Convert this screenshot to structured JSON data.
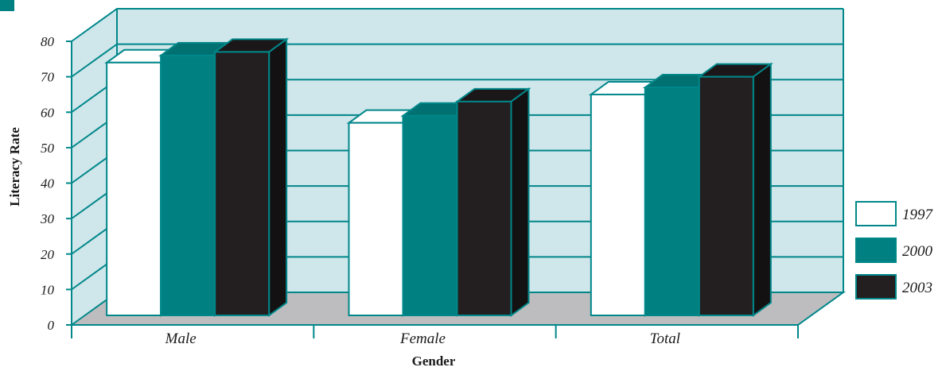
{
  "colors": {
    "wall": "#cfe6ea",
    "floor": "#bdbdbf",
    "grid": "#00878a",
    "s1997": "#ffffff",
    "s2000": "#008080",
    "s2003": "#231f20",
    "top2000": "#007070",
    "side2000": "#005e5e",
    "top2003": "#1b1718",
    "side2003": "#141112",
    "top1997": "#ffffff",
    "side1997": "#ffffff",
    "stroke": "#00878a"
  },
  "chart_data": {
    "type": "bar",
    "categories": [
      "Male",
      "Female",
      "Total"
    ],
    "series": [
      {
        "name": "1997",
        "values": [
          74,
          57,
          65
        ]
      },
      {
        "name": "2000",
        "values": [
          76,
          59,
          67
        ]
      },
      {
        "name": "2003",
        "values": [
          77,
          63,
          70
        ]
      }
    ],
    "xlabel": "Gender",
    "ylabel": "Literacy Rate",
    "ylim": [
      0,
      80
    ],
    "yticks": [
      "0",
      "10",
      "20",
      "30",
      "40",
      "50",
      "60",
      "70",
      "80"
    ],
    "legend_position": "right",
    "grid": true
  }
}
